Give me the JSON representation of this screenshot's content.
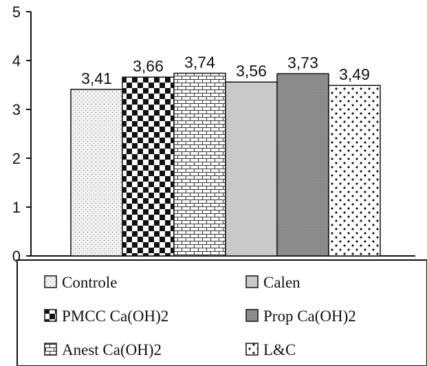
{
  "chart_data": {
    "type": "bar",
    "categories": [
      "Controle",
      "PMCC Ca(OH)2",
      "Anest Ca(OH)2",
      "Calen",
      "Prop Ca(OH)2",
      "L&C"
    ],
    "values": [
      3.41,
      3.66,
      3.74,
      3.56,
      3.73,
      3.49
    ],
    "data_labels": [
      "3,41",
      "3,66",
      "3,74",
      "3,56",
      "3,73",
      "3,49"
    ],
    "title": "",
    "xlabel": "",
    "ylabel": "",
    "ylim": [
      0,
      5
    ],
    "yticks": [
      "0",
      "1",
      "2",
      "3",
      "4",
      "5"
    ],
    "grid": false,
    "legend": {
      "placement": "bottom",
      "entries": [
        {
          "label": "Controle",
          "pattern": "light-dots"
        },
        {
          "label": "Calen",
          "pattern": "light-gray"
        },
        {
          "label": "PMCC Ca(OH)2",
          "pattern": "checkerboard"
        },
        {
          "label": "Prop Ca(OH)2",
          "pattern": "dark-gray"
        },
        {
          "label": "Anest Ca(OH)2",
          "pattern": "bricks"
        },
        {
          "label": "L&C",
          "pattern": "diamonds"
        }
      ]
    },
    "colors": {
      "axis": "#111111",
      "light_gray": "#c8c8c8",
      "dark_gray": "#8a8a8a"
    }
  }
}
